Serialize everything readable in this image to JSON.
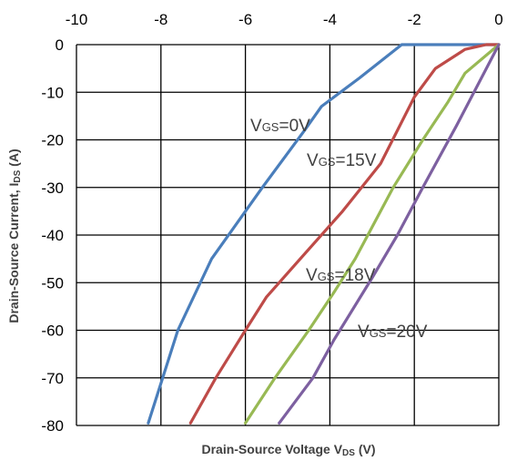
{
  "chart_data": {
    "type": "line",
    "title": "",
    "xlabel": {
      "main": "Drain-Source Voltage V",
      "sub": "DS",
      "unit": " (V)"
    },
    "ylabel": {
      "main": "Drain-Source Current, I",
      "sub": "DS",
      "unit": " (A)"
    },
    "xlim": [
      -10,
      0
    ],
    "ylim": [
      -80,
      0
    ],
    "xticks": [
      -10,
      -8,
      -6,
      -4,
      -2,
      0
    ],
    "yticks": [
      0,
      -10,
      -20,
      -30,
      -40,
      -50,
      -60,
      -70,
      -80
    ],
    "x_axis_position": "top",
    "grid": true,
    "legend": "none",
    "series": [
      {
        "label": {
          "main": "V",
          "sub": "GS",
          "rest": "=0V"
        },
        "color": "#4a7ebb",
        "points": [
          [
            -8.3,
            -79.5
          ],
          [
            -7.6,
            -60
          ],
          [
            -6.8,
            -45
          ],
          [
            -5.6,
            -30
          ],
          [
            -4.6,
            -18
          ],
          [
            -4.2,
            -13
          ],
          [
            -3.3,
            -7
          ],
          [
            -2.3,
            0
          ],
          [
            0,
            0
          ]
        ]
      },
      {
        "label": {
          "main": "V",
          "sub": "GS",
          "rest": "=15V"
        },
        "color": "#be4b48",
        "points": [
          [
            -7.3,
            -79.5
          ],
          [
            -6.7,
            -70
          ],
          [
            -6.0,
            -60
          ],
          [
            -5.5,
            -53
          ],
          [
            -4.7,
            -45
          ],
          [
            -3.7,
            -35
          ],
          [
            -2.8,
            -25
          ],
          [
            -2.0,
            -11
          ],
          [
            -1.5,
            -5
          ],
          [
            -0.8,
            -1
          ],
          [
            -0.3,
            0
          ],
          [
            0,
            0
          ]
        ]
      },
      {
        "label": {
          "main": "V",
          "sub": "GS",
          "rest": "=18V"
        },
        "color": "#98b954",
        "points": [
          [
            -6.0,
            -79.5
          ],
          [
            -5.3,
            -70
          ],
          [
            -4.5,
            -60
          ],
          [
            -3.9,
            -52
          ],
          [
            -3.4,
            -45
          ],
          [
            -2.5,
            -30
          ],
          [
            -1.8,
            -20
          ],
          [
            -1.2,
            -12
          ],
          [
            -0.8,
            -6
          ],
          [
            0,
            0
          ]
        ]
      },
      {
        "label": {
          "main": "V",
          "sub": "GS",
          "rest": "=20V"
        },
        "color": "#7d60a0",
        "points": [
          [
            -5.2,
            -79.5
          ],
          [
            -4.4,
            -70
          ],
          [
            -3.9,
            -62
          ],
          [
            -3.0,
            -49
          ],
          [
            -2.4,
            -40
          ],
          [
            -1.8,
            -30
          ],
          [
            -1.0,
            -17
          ],
          [
            0,
            0
          ]
        ]
      }
    ]
  }
}
